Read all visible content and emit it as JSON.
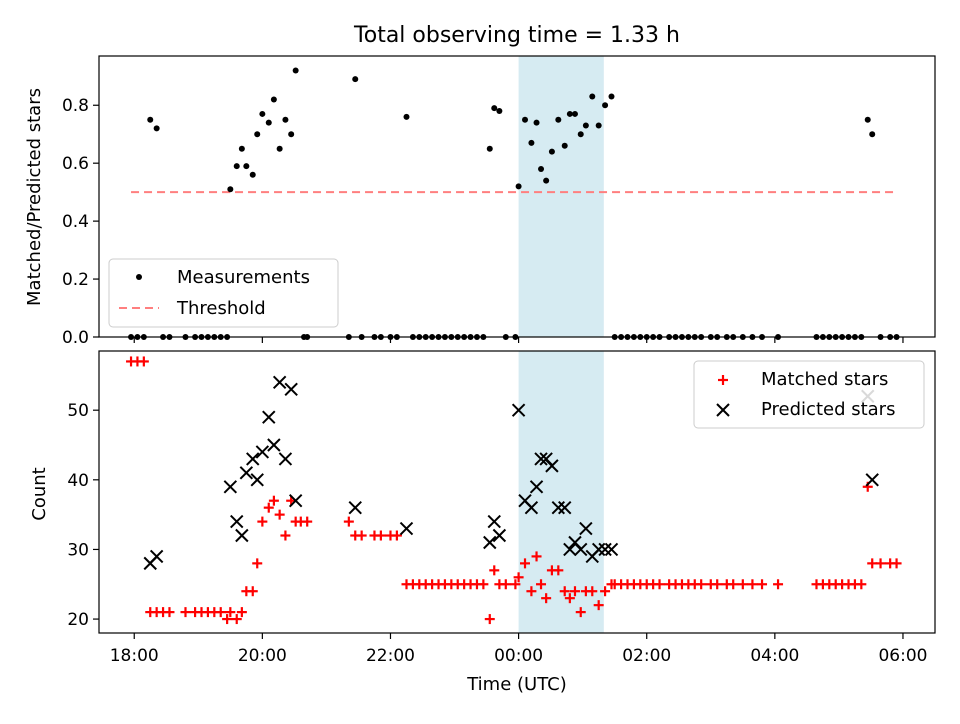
{
  "figure": {
    "title": "Total observing time = 1.33 h",
    "xlabel": "Time (UTC)",
    "xticks": [
      {
        "hour": 18,
        "label": "18:00"
      },
      {
        "hour": 20,
        "label": "20:00"
      },
      {
        "hour": 22,
        "label": "22:00"
      },
      {
        "hour": 24,
        "label": "00:00"
      },
      {
        "hour": 26,
        "label": "02:00"
      },
      {
        "hour": 28,
        "label": "04:00"
      },
      {
        "hour": 30,
        "label": "06:00"
      }
    ],
    "xlim_hours": [
      17.45,
      30.5
    ],
    "shaded_span_hours": [
      24.0,
      25.33
    ],
    "shade_color": "#add8e6"
  },
  "chart_data": [
    {
      "type": "scatter",
      "ylabel": "Matched/Predicted stars",
      "ylim": [
        0,
        0.97
      ],
      "yticks": [
        "0.0",
        "0.2",
        "0.4",
        "0.6",
        "0.8"
      ],
      "yticks_values": [
        0,
        0.2,
        0.4,
        0.6,
        0.8
      ],
      "legend": {
        "placement": "lower-left"
      },
      "series": [
        {
          "name": "Measurements",
          "color": "#000000",
          "marker": "dot",
          "points": [
            [
              17.95,
              0
            ],
            [
              18.05,
              0
            ],
            [
              18.15,
              0
            ],
            [
              18.25,
              0.75
            ],
            [
              18.35,
              0.72
            ],
            [
              18.45,
              0
            ],
            [
              18.55,
              0
            ],
            [
              18.8,
              0
            ],
            [
              18.95,
              0
            ],
            [
              19.05,
              0
            ],
            [
              19.15,
              0
            ],
            [
              19.25,
              0
            ],
            [
              19.35,
              0
            ],
            [
              19.45,
              0
            ],
            [
              19.5,
              0.51
            ],
            [
              19.6,
              0.59
            ],
            [
              19.68,
              0.65
            ],
            [
              19.75,
              0.59
            ],
            [
              19.85,
              0.56
            ],
            [
              19.92,
              0.7
            ],
            [
              20.0,
              0.77
            ],
            [
              20.1,
              0.74
            ],
            [
              20.18,
              0.82
            ],
            [
              20.27,
              0.65
            ],
            [
              20.36,
              0.75
            ],
            [
              20.45,
              0.7
            ],
            [
              20.52,
              0.92
            ],
            [
              20.65,
              0
            ],
            [
              20.7,
              0
            ],
            [
              21.35,
              0
            ],
            [
              21.45,
              0.89
            ],
            [
              21.55,
              0
            ],
            [
              21.75,
              0
            ],
            [
              21.85,
              0
            ],
            [
              22.0,
              0
            ],
            [
              22.1,
              0
            ],
            [
              22.25,
              0.76
            ],
            [
              22.35,
              0
            ],
            [
              22.45,
              0
            ],
            [
              22.55,
              0
            ],
            [
              22.65,
              0
            ],
            [
              22.75,
              0
            ],
            [
              22.85,
              0
            ],
            [
              22.95,
              0
            ],
            [
              23.05,
              0
            ],
            [
              23.15,
              0
            ],
            [
              23.25,
              0
            ],
            [
              23.35,
              0
            ],
            [
              23.45,
              0
            ],
            [
              23.55,
              0.65
            ],
            [
              23.62,
              0.79
            ],
            [
              23.7,
              0.78
            ],
            [
              23.8,
              0
            ],
            [
              23.95,
              0
            ],
            [
              24.0,
              0.52
            ],
            [
              24.1,
              0.75
            ],
            [
              24.2,
              0.67
            ],
            [
              24.28,
              0.74
            ],
            [
              24.35,
              0.58
            ],
            [
              24.43,
              0.54
            ],
            [
              24.52,
              0.64
            ],
            [
              24.62,
              0.75
            ],
            [
              24.72,
              0.66
            ],
            [
              24.8,
              0.77
            ],
            [
              24.88,
              0.77
            ],
            [
              24.97,
              0.7
            ],
            [
              25.05,
              0.73
            ],
            [
              25.15,
              0.83
            ],
            [
              25.25,
              0.73
            ],
            [
              25.35,
              0.8
            ],
            [
              25.45,
              0.83
            ],
            [
              25.5,
              0
            ],
            [
              25.6,
              0
            ],
            [
              25.7,
              0
            ],
            [
              25.8,
              0
            ],
            [
              25.9,
              0
            ],
            [
              26.0,
              0
            ],
            [
              26.1,
              0
            ],
            [
              26.2,
              0
            ],
            [
              26.35,
              0
            ],
            [
              26.45,
              0
            ],
            [
              26.55,
              0
            ],
            [
              26.65,
              0
            ],
            [
              26.75,
              0
            ],
            [
              26.85,
              0
            ],
            [
              27.0,
              0
            ],
            [
              27.1,
              0
            ],
            [
              27.25,
              0
            ],
            [
              27.35,
              0
            ],
            [
              27.5,
              0
            ],
            [
              27.65,
              0
            ],
            [
              27.8,
              0
            ],
            [
              28.05,
              0
            ],
            [
              28.65,
              0
            ],
            [
              28.75,
              0
            ],
            [
              28.85,
              0
            ],
            [
              28.95,
              0
            ],
            [
              29.05,
              0
            ],
            [
              29.15,
              0
            ],
            [
              29.25,
              0
            ],
            [
              29.35,
              0
            ],
            [
              29.45,
              0.75
            ],
            [
              29.52,
              0.7
            ],
            [
              29.65,
              0
            ],
            [
              29.8,
              0
            ],
            [
              29.9,
              0
            ]
          ]
        },
        {
          "name": "Threshold",
          "color": "#ff7f7f",
          "style": "dashed",
          "points": [
            [
              17.95,
              0.5
            ],
            [
              29.9,
              0.5
            ]
          ]
        }
      ]
    },
    {
      "type": "scatter",
      "ylabel": "Count",
      "ylim": [
        18,
        58.5
      ],
      "yticks": [
        "20",
        "30",
        "40",
        "50"
      ],
      "yticks_values": [
        20,
        30,
        40,
        50
      ],
      "legend": {
        "placement": "top-right"
      },
      "series": [
        {
          "name": "Matched stars",
          "color": "#ff0000",
          "marker": "plus",
          "points": [
            [
              17.95,
              57
            ],
            [
              18.05,
              57
            ],
            [
              18.15,
              57
            ],
            [
              18.25,
              21
            ],
            [
              18.35,
              21
            ],
            [
              18.45,
              21
            ],
            [
              18.55,
              21
            ],
            [
              18.8,
              21
            ],
            [
              18.95,
              21
            ],
            [
              19.05,
              21
            ],
            [
              19.15,
              21
            ],
            [
              19.25,
              21
            ],
            [
              19.35,
              21
            ],
            [
              19.45,
              20
            ],
            [
              19.5,
              21
            ],
            [
              19.6,
              20
            ],
            [
              19.68,
              21
            ],
            [
              19.75,
              24
            ],
            [
              19.85,
              24
            ],
            [
              19.92,
              28
            ],
            [
              20.0,
              34
            ],
            [
              20.1,
              36
            ],
            [
              20.18,
              37
            ],
            [
              20.27,
              35
            ],
            [
              20.36,
              32
            ],
            [
              20.45,
              37
            ],
            [
              20.52,
              34
            ],
            [
              20.6,
              34
            ],
            [
              20.7,
              34
            ],
            [
              21.35,
              34
            ],
            [
              21.45,
              32
            ],
            [
              21.55,
              32
            ],
            [
              21.75,
              32
            ],
            [
              21.85,
              32
            ],
            [
              22.0,
              32
            ],
            [
              22.1,
              32
            ],
            [
              22.25,
              25
            ],
            [
              22.35,
              25
            ],
            [
              22.45,
              25
            ],
            [
              22.55,
              25
            ],
            [
              22.65,
              25
            ],
            [
              22.75,
              25
            ],
            [
              22.85,
              25
            ],
            [
              22.95,
              25
            ],
            [
              23.05,
              25
            ],
            [
              23.15,
              25
            ],
            [
              23.25,
              25
            ],
            [
              23.35,
              25
            ],
            [
              23.45,
              25
            ],
            [
              23.55,
              20
            ],
            [
              23.62,
              27
            ],
            [
              23.7,
              25
            ],
            [
              23.8,
              25
            ],
            [
              23.95,
              25
            ],
            [
              24.0,
              26
            ],
            [
              24.1,
              28
            ],
            [
              24.2,
              24
            ],
            [
              24.28,
              29
            ],
            [
              24.35,
              25
            ],
            [
              24.43,
              23
            ],
            [
              24.52,
              27
            ],
            [
              24.62,
              27
            ],
            [
              24.72,
              24
            ],
            [
              24.8,
              23
            ],
            [
              24.88,
              24
            ],
            [
              24.97,
              21
            ],
            [
              25.05,
              24
            ],
            [
              25.15,
              24
            ],
            [
              25.25,
              22
            ],
            [
              25.35,
              24
            ],
            [
              25.45,
              25
            ],
            [
              25.5,
              25
            ],
            [
              25.6,
              25
            ],
            [
              25.7,
              25
            ],
            [
              25.8,
              25
            ],
            [
              25.9,
              25
            ],
            [
              26.0,
              25
            ],
            [
              26.1,
              25
            ],
            [
              26.2,
              25
            ],
            [
              26.35,
              25
            ],
            [
              26.45,
              25
            ],
            [
              26.55,
              25
            ],
            [
              26.65,
              25
            ],
            [
              26.75,
              25
            ],
            [
              26.85,
              25
            ],
            [
              27.0,
              25
            ],
            [
              27.1,
              25
            ],
            [
              27.25,
              25
            ],
            [
              27.35,
              25
            ],
            [
              27.5,
              25
            ],
            [
              27.65,
              25
            ],
            [
              27.8,
              25
            ],
            [
              28.05,
              25
            ],
            [
              28.65,
              25
            ],
            [
              28.75,
              25
            ],
            [
              28.85,
              25
            ],
            [
              28.95,
              25
            ],
            [
              29.05,
              25
            ],
            [
              29.15,
              25
            ],
            [
              29.25,
              25
            ],
            [
              29.35,
              25
            ],
            [
              29.45,
              39
            ],
            [
              29.52,
              28
            ],
            [
              29.65,
              28
            ],
            [
              29.8,
              28
            ],
            [
              29.9,
              28
            ]
          ]
        },
        {
          "name": "Predicted stars",
          "color": "#000000",
          "marker": "x",
          "points": [
            [
              18.25,
              28
            ],
            [
              18.35,
              29
            ],
            [
              19.5,
              39
            ],
            [
              19.6,
              34
            ],
            [
              19.68,
              32
            ],
            [
              19.75,
              41
            ],
            [
              19.85,
              43
            ],
            [
              19.92,
              40
            ],
            [
              20.0,
              44
            ],
            [
              20.1,
              49
            ],
            [
              20.18,
              45
            ],
            [
              20.27,
              54
            ],
            [
              20.36,
              43
            ],
            [
              20.45,
              53
            ],
            [
              20.52,
              37
            ],
            [
              21.45,
              36
            ],
            [
              22.25,
              33
            ],
            [
              23.55,
              31
            ],
            [
              23.62,
              34
            ],
            [
              23.7,
              32
            ],
            [
              24.0,
              50
            ],
            [
              24.1,
              37
            ],
            [
              24.2,
              36
            ],
            [
              24.28,
              39
            ],
            [
              24.35,
              43
            ],
            [
              24.43,
              43
            ],
            [
              24.52,
              42
            ],
            [
              24.62,
              36
            ],
            [
              24.72,
              36
            ],
            [
              24.8,
              30
            ],
            [
              24.88,
              31
            ],
            [
              24.97,
              30
            ],
            [
              25.05,
              33
            ],
            [
              25.15,
              29
            ],
            [
              25.25,
              30
            ],
            [
              25.35,
              30
            ],
            [
              25.45,
              30
            ],
            [
              29.45,
              52
            ],
            [
              29.52,
              40
            ]
          ]
        }
      ]
    }
  ]
}
